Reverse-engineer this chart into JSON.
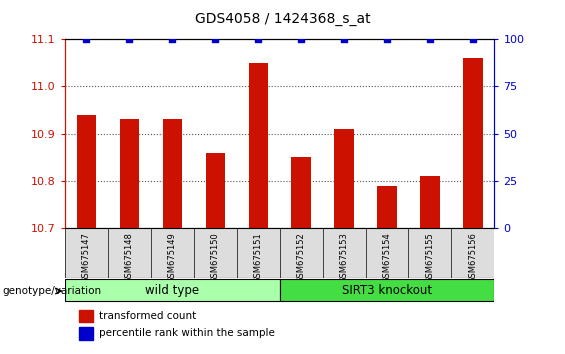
{
  "title": "GDS4058 / 1424368_s_at",
  "samples": [
    "GSM675147",
    "GSM675148",
    "GSM675149",
    "GSM675150",
    "GSM675151",
    "GSM675152",
    "GSM675153",
    "GSM675154",
    "GSM675155",
    "GSM675156"
  ],
  "transformed_count": [
    10.94,
    10.93,
    10.93,
    10.86,
    11.05,
    10.85,
    10.91,
    10.79,
    10.81,
    11.06
  ],
  "percentile_rank": [
    100,
    100,
    100,
    100,
    100,
    100,
    100,
    100,
    100,
    100
  ],
  "groups": [
    {
      "label": "wild type",
      "indices": [
        0,
        1,
        2,
        3,
        4
      ],
      "color": "#AAFFAA"
    },
    {
      "label": "SIRT3 knockout",
      "indices": [
        5,
        6,
        7,
        8,
        9
      ],
      "color": "#44DD44"
    }
  ],
  "ylim": [
    10.7,
    11.1
  ],
  "yticks": [
    10.7,
    10.8,
    10.9,
    11.0,
    11.1
  ],
  "y2lim": [
    0,
    100
  ],
  "y2ticks": [
    0,
    25,
    50,
    75,
    100
  ],
  "bar_color": "#CC1100",
  "dot_color": "#0000CC",
  "dot_size": 15,
  "bar_width": 0.45,
  "grid_linestyle": ":",
  "grid_color": "#555555",
  "grid_linewidth": 0.8,
  "axis_color_left": "#CC1100",
  "axis_color_right": "#0000CC",
  "sample_bg_color": "#DDDDDD",
  "legend_items": [
    {
      "label": "transformed count",
      "color": "#CC1100"
    },
    {
      "label": "percentile rank within the sample",
      "color": "#0000CC"
    }
  ],
  "title_fontsize": 10,
  "tick_fontsize": 8,
  "sample_fontsize": 6,
  "group_fontsize": 8.5,
  "legend_fontsize": 7.5,
  "genotype_label": "genotype/variation"
}
